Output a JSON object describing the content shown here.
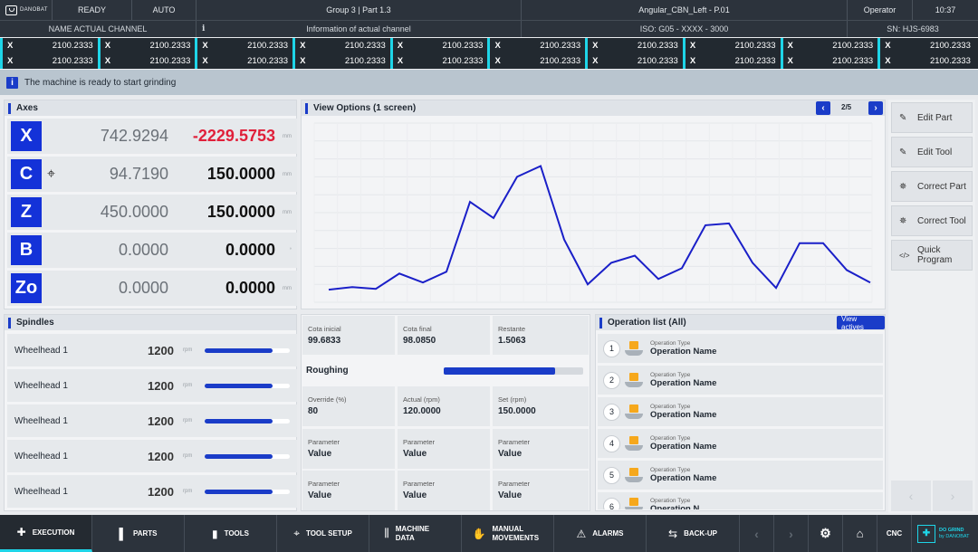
{
  "header": {
    "logo_text": "DANOBAT",
    "state": "READY",
    "mode": "AUTO",
    "group_part": "Group 3 | Part 1.3",
    "program": "Angular_CBN_Left - P.01",
    "user": "Operator",
    "time": "10:37",
    "channel_name": "NAME ACTUAL CHANNEL",
    "info_icon": "info-icon",
    "channel_info": "Information of actual channel",
    "iso": "ISO: G05 - XXXX - 3000",
    "serial": "SN: HJS-6983"
  },
  "coords": {
    "row1": [
      {
        "axis": "X",
        "value": "2100.2333"
      },
      {
        "axis": "X",
        "value": "2100.2333"
      },
      {
        "axis": "X",
        "value": "2100.2333"
      },
      {
        "axis": "X",
        "value": "2100.2333"
      },
      {
        "axis": "X",
        "value": "2100.2333"
      },
      {
        "axis": "X",
        "value": "2100.2333"
      },
      {
        "axis": "X",
        "value": "2100.2333"
      },
      {
        "axis": "X",
        "value": "2100.2333"
      },
      {
        "axis": "X",
        "value": "2100.2333"
      },
      {
        "axis": "X",
        "value": "2100.2333"
      }
    ],
    "row2": [
      {
        "axis": "X",
        "value": "2100.2333"
      },
      {
        "axis": "X",
        "value": "2100.2333"
      },
      {
        "axis": "X",
        "value": "2100.2333"
      },
      {
        "axis": "X",
        "value": "2100.2333"
      },
      {
        "axis": "X",
        "value": "2100.2333"
      },
      {
        "axis": "X",
        "value": "2100.2333"
      },
      {
        "axis": "X",
        "value": "2100.2333"
      },
      {
        "axis": "X",
        "value": "2100.2333"
      },
      {
        "axis": "X",
        "value": "2100.2333"
      },
      {
        "axis": "X",
        "value": "2100.2333"
      }
    ]
  },
  "message": {
    "icon": "i",
    "text": "The machine is ready to start grinding"
  },
  "axes": {
    "title": "Axes",
    "rows": [
      {
        "label": "X",
        "actual": "742.9294",
        "target": "-2229.5753",
        "unit": "mm",
        "highlight": true
      },
      {
        "label": "C",
        "actual": "94.7190",
        "target": "150.0000",
        "unit": "mm",
        "icon": "crosshair-icon"
      },
      {
        "label": "Z",
        "actual": "450.0000",
        "target": "150.0000",
        "unit": "mm"
      },
      {
        "label": "B",
        "actual": "0.0000",
        "target": "0.0000",
        "unit": "°"
      },
      {
        "label": "Zo",
        "actual": "0.0000",
        "target": "0.0000",
        "unit": "mm"
      }
    ]
  },
  "view": {
    "title": "View Options (1 screen)",
    "page": "2/5"
  },
  "chart_data": {
    "type": "line",
    "y": [
      7,
      8.5,
      7.5,
      16,
      11,
      17,
      56,
      47,
      70,
      76,
      35,
      10,
      22,
      26,
      13,
      19,
      43,
      44,
      22,
      8,
      33,
      33,
      18,
      11
    ],
    "title": "",
    "xlabel": "",
    "ylabel": "",
    "ylim": [
      0,
      100
    ],
    "grid": true,
    "color": "#1a1fc8"
  },
  "spindles": {
    "title": "Spindles",
    "rows": [
      {
        "name": "Wheelhead 1",
        "value": "1200",
        "unit": "rpm",
        "level": 0.8
      },
      {
        "name": "Wheelhead 1",
        "value": "1200",
        "unit": "rpm",
        "level": 0.8
      },
      {
        "name": "Wheelhead 1",
        "value": "1200",
        "unit": "rpm",
        "level": 0.8
      },
      {
        "name": "Wheelhead 1",
        "value": "1200",
        "unit": "rpm",
        "level": 0.8
      },
      {
        "name": "Wheelhead 1",
        "value": "1200",
        "unit": "rpm",
        "level": 0.8
      }
    ]
  },
  "process": {
    "cota_inicial_label": "Cota inicial",
    "cota_inicial": "99.6833",
    "cota_final_label": "Cota final",
    "cota_final": "98.0850",
    "restante_label": "Restante",
    "restante": "1.5063",
    "phase": "Roughing",
    "phase_progress": 0.8,
    "override_label": "Override (%)",
    "override": "80",
    "actual_label": "Actual (rpm)",
    "actual": "120.0000",
    "set_label": "Set (rpm)",
    "set": "150.0000",
    "params": [
      {
        "label": "Parameter",
        "value": "Value"
      },
      {
        "label": "Parameter",
        "value": "Value"
      },
      {
        "label": "Parameter",
        "value": "Value"
      },
      {
        "label": "Parameter",
        "value": "Value"
      },
      {
        "label": "Parameter",
        "value": "Value"
      },
      {
        "label": "Parameter",
        "value": "Value"
      }
    ]
  },
  "operations": {
    "title": "Operation list (All)",
    "view_button": "View actives",
    "items": [
      {
        "num": "1",
        "type": "Operation Type",
        "name": "Operation Name"
      },
      {
        "num": "2",
        "type": "Operation Type",
        "name": "Operation Name"
      },
      {
        "num": "3",
        "type": "Operation Type",
        "name": "Operation Name"
      },
      {
        "num": "4",
        "type": "Operation Type",
        "name": "Operation Name"
      },
      {
        "num": "5",
        "type": "Operation Type",
        "name": "Operation Name"
      },
      {
        "num": "6",
        "type": "Operation Type",
        "name": "Operation N..."
      }
    ]
  },
  "side_buttons": [
    {
      "label": "Edit Part",
      "icon": "pencil-icon"
    },
    {
      "label": "Edit Tool",
      "icon": "pencil-icon"
    },
    {
      "label": "Correct Part",
      "icon": "correct-icon"
    },
    {
      "label": "Correct Tool",
      "icon": "correct-icon"
    },
    {
      "label": "Quick Program",
      "icon": "code-icon"
    }
  ],
  "nav": {
    "items": [
      {
        "label": "EXECUTION",
        "icon": "execution-icon"
      },
      {
        "label": "PARTS",
        "icon": "parts-icon"
      },
      {
        "label": "TOOLS",
        "icon": "tools-icon"
      },
      {
        "label": "TOOL SETUP",
        "icon": "target-icon"
      },
      {
        "label": "MACHINE DATA",
        "icon": "sliders-icon"
      },
      {
        "label": "MANUAL MOVEMENTS",
        "icon": "hand-icon"
      },
      {
        "label": "ALARMS",
        "icon": "warning-icon"
      },
      {
        "label": "BACK-UP",
        "icon": "swap-icon"
      }
    ],
    "cnc": "CNC",
    "brand": "DO GRIND",
    "brand_sub": "by DANOBAT"
  }
}
